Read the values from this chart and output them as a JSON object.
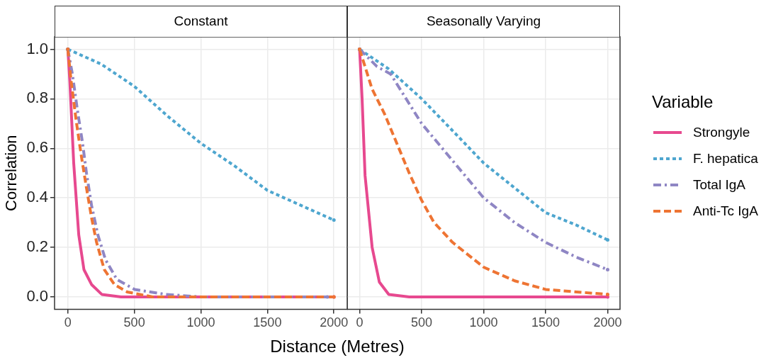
{
  "chart_data": [
    {
      "type": "line",
      "title": "Constant",
      "xlabel": "Distance (Metres)",
      "ylabel": "Correlation",
      "xlim": [
        -100,
        2100
      ],
      "xticks": [
        0,
        500,
        1000,
        1500,
        2000
      ],
      "ylim": [
        -0.05,
        1.05
      ],
      "yticks": [
        {
          "value": 0,
          "label": "0.0"
        },
        {
          "value": 0.2,
          "label": "0.2"
        },
        {
          "value": 0.4,
          "label": "0.4"
        },
        {
          "value": 0.6,
          "label": "0.6"
        },
        {
          "value": 0.8,
          "label": "0.8"
        },
        {
          "value": 1,
          "label": "1.0"
        }
      ],
      "grid": true,
      "marker": "none",
      "series": [
        {
          "color": "#e7498f",
          "line_style": "solid",
          "x": [
            0,
            15,
            44,
            82,
            121,
            178,
            255,
            400,
            1000,
            2000
          ],
          "values": [
            1,
            0.87,
            0.54,
            0.25,
            0.11,
            0.05,
            0.01,
            0,
            0,
            0
          ]
        },
        {
          "color": "#4ea6cf",
          "line_style": "dotted",
          "x": [
            0,
            250,
            500,
            750,
            1000,
            1250,
            1500,
            1750,
            2000
          ],
          "values": [
            1,
            0.94,
            0.85,
            0.73,
            0.62,
            0.53,
            0.43,
            0.37,
            0.31
          ]
        },
        {
          "color": "#8f86c4",
          "line_style": "dashdot",
          "x": [
            0,
            34,
            73,
            111,
            140,
            178,
            226,
            283,
            369,
            503,
            733,
            1000,
            1950
          ],
          "values": [
            1,
            0.9,
            0.75,
            0.62,
            0.5,
            0.37,
            0.25,
            0.15,
            0.07,
            0.03,
            0.01,
            0,
            0
          ]
        },
        {
          "color": "#ee7433",
          "line_style": "dashed",
          "x": [
            0,
            25,
            63,
            101,
            140,
            178,
            216,
            274,
            350,
            446,
            637,
            2000
          ],
          "values": [
            1,
            0.87,
            0.71,
            0.57,
            0.44,
            0.32,
            0.22,
            0.11,
            0.05,
            0.02,
            0,
            0
          ]
        }
      ]
    },
    {
      "type": "line",
      "title": "Seasonally Varying",
      "xlim": [
        -100,
        2100
      ],
      "xticks": [
        0,
        500,
        1000,
        1500,
        2000
      ],
      "ylim": [
        -0.05,
        1.05
      ],
      "yticks": [
        {
          "value": 0,
          "label": null
        },
        {
          "value": 0.2,
          "label": null
        },
        {
          "value": 0.4,
          "label": null
        },
        {
          "value": 0.6,
          "label": null
        },
        {
          "value": 0.8,
          "label": null
        },
        {
          "value": 1,
          "label": null
        }
      ],
      "tick_labels": "x",
      "grid": true,
      "legend": "right",
      "legend_title": "Variable",
      "marker": "none",
      "series": [
        {
          "name": "Strongyle",
          "color": "#e7498f",
          "line_style": "solid",
          "x": [
            0,
            20,
            44,
            101,
            159,
            235,
            400,
            1000,
            2000
          ],
          "values": [
            1,
            0.8,
            0.49,
            0.2,
            0.06,
            0.01,
            0,
            0,
            0
          ]
        },
        {
          "name": "F. hepatica",
          "color": "#4ea6cf",
          "line_style": "dotted",
          "x": [
            0,
            235,
            500,
            752,
            1001,
            1250,
            1500,
            1747,
            2000
          ],
          "values": [
            1,
            0.92,
            0.8,
            0.67,
            0.54,
            0.44,
            0.34,
            0.29,
            0.23
          ]
        },
        {
          "name": "Total IgA",
          "color": "#8f86c4",
          "line_style": "dashdot",
          "x": [
            0,
            140,
            250,
            500,
            750,
            1000,
            1250,
            1500,
            1750,
            2000
          ],
          "values": [
            1,
            0.93,
            0.9,
            0.7,
            0.55,
            0.4,
            0.3,
            0.22,
            0.16,
            0.11
          ]
        },
        {
          "name": "Anti-Tc IgA",
          "color": "#ee7433",
          "line_style": "dashed",
          "x": [
            0,
            50,
            100,
            200,
            300,
            400,
            500,
            600,
            750,
            1000,
            1250,
            1500,
            1750,
            2000
          ],
          "values": [
            1,
            0.92,
            0.84,
            0.74,
            0.62,
            0.5,
            0.39,
            0.3,
            0.22,
            0.12,
            0.065,
            0.03,
            0.02,
            0.01
          ]
        }
      ]
    }
  ]
}
